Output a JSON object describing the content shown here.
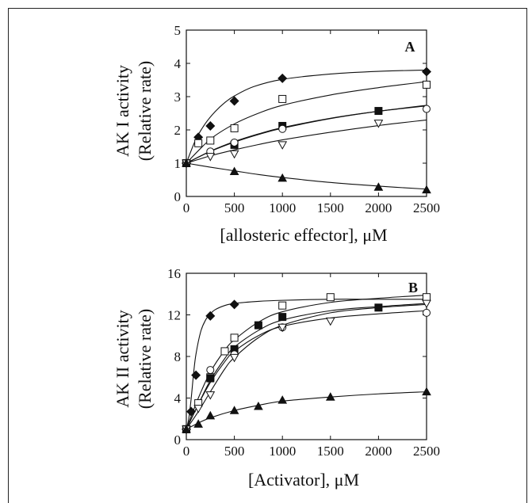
{
  "chart_data": [
    {
      "type": "scatter",
      "panel_label": "A",
      "xlabel": "[allosteric effector], μM",
      "ylabel_line1": "AK I activity",
      "ylabel_line2": "(Relative rate)",
      "xlim": [
        0,
        2500
      ],
      "ylim": [
        0,
        5
      ],
      "xticks": [
        0,
        500,
        1000,
        1500,
        2000,
        2500
      ],
      "yticks": [
        0,
        1,
        2,
        3,
        4,
        5
      ],
      "grid": false,
      "series": [
        {
          "marker": "filled-diamond",
          "x": [
            0,
            125,
            250,
            500,
            1000,
            2500
          ],
          "y": [
            1.0,
            1.78,
            2.12,
            2.87,
            3.55,
            3.75
          ],
          "fit_x": [
            0,
            100,
            200,
            300,
            400,
            500,
            700,
            1000,
            1500,
            2000,
            2500
          ],
          "fit_y": [
            1.0,
            1.72,
            2.2,
            2.55,
            2.82,
            3.02,
            3.3,
            3.52,
            3.68,
            3.76,
            3.8
          ]
        },
        {
          "marker": "open-square",
          "x": [
            0,
            125,
            250,
            500,
            1000,
            2500
          ],
          "y": [
            1.0,
            1.6,
            1.68,
            2.05,
            2.93,
            3.36
          ],
          "fit_x": [
            0,
            250,
            500,
            750,
            1000,
            1500,
            2000,
            2500
          ],
          "fit_y": [
            1.0,
            1.72,
            2.18,
            2.5,
            2.74,
            3.05,
            3.27,
            3.45
          ]
        },
        {
          "marker": "filled-square",
          "x": [
            0,
            500,
            1000,
            2000
          ],
          "y": [
            1.0,
            1.55,
            2.12,
            2.57
          ],
          "fit_x": [
            0,
            250,
            500,
            750,
            1000,
            1500,
            2000,
            2500
          ],
          "fit_y": [
            1.0,
            1.36,
            1.65,
            1.88,
            2.07,
            2.35,
            2.56,
            2.72
          ]
        },
        {
          "marker": "open-circle",
          "x": [
            0,
            250,
            500,
            1000,
            2500
          ],
          "y": [
            1.0,
            1.35,
            1.62,
            2.03,
            2.63
          ],
          "fit_x": [
            0,
            250,
            500,
            750,
            1000,
            1500,
            2000,
            2500
          ],
          "fit_y": [
            1.0,
            1.35,
            1.63,
            1.86,
            2.05,
            2.34,
            2.56,
            2.74
          ]
        },
        {
          "marker": "open-triangle-down",
          "x": [
            0,
            250,
            500,
            1000,
            2000
          ],
          "y": [
            1.0,
            1.2,
            1.28,
            1.55,
            2.2
          ],
          "fit_x": [
            0,
            250,
            500,
            750,
            1000,
            1500,
            2000,
            2500
          ],
          "fit_y": [
            1.0,
            1.22,
            1.4,
            1.56,
            1.7,
            1.93,
            2.13,
            2.3
          ]
        },
        {
          "marker": "filled-triangle-up",
          "x": [
            0,
            500,
            1000,
            2000,
            2500
          ],
          "y": [
            1.0,
            0.75,
            0.55,
            0.28,
            0.2
          ],
          "fit_x": [
            0,
            250,
            500,
            750,
            1000,
            1500,
            2000,
            2500
          ],
          "fit_y": [
            1.0,
            0.88,
            0.77,
            0.66,
            0.57,
            0.42,
            0.31,
            0.22
          ]
        }
      ]
    },
    {
      "type": "scatter",
      "panel_label": "B",
      "xlabel": "[Activator], μM",
      "ylabel_line1": "AK II activity",
      "ylabel_line2": "(Relative rate)",
      "xlim": [
        0,
        2500
      ],
      "ylim": [
        0,
        16
      ],
      "xticks": [
        0,
        500,
        1000,
        1500,
        2000,
        2500
      ],
      "yticks": [
        0,
        4,
        8,
        12,
        16
      ],
      "grid": false,
      "series": [
        {
          "marker": "filled-diamond",
          "x": [
            0,
            50,
            100,
            250,
            500
          ],
          "y": [
            1.0,
            2.7,
            6.2,
            11.9,
            13.0
          ],
          "fit_x": [
            0,
            25,
            50,
            75,
            100,
            150,
            200,
            250,
            300,
            400,
            500,
            750,
            1000,
            1500,
            2000,
            2500
          ],
          "fit_y": [
            1.0,
            2.0,
            3.9,
            6.3,
            8.2,
            10.4,
            11.5,
            12.1,
            12.5,
            12.9,
            13.1,
            13.3,
            13.4,
            13.5,
            13.5,
            13.5
          ]
        },
        {
          "marker": "open-square",
          "x": [
            0,
            125,
            250,
            400,
            500,
            1000,
            1500,
            2500
          ],
          "y": [
            1.0,
            3.5,
            6.0,
            8.5,
            9.8,
            12.9,
            13.7,
            13.7
          ],
          "fit_x": [
            0,
            125,
            250,
            400,
            500,
            750,
            1000,
            1500,
            2000,
            2500
          ],
          "fit_y": [
            1.0,
            4.0,
            6.5,
            8.6,
            9.6,
            11.3,
            12.3,
            13.2,
            13.6,
            13.9
          ]
        },
        {
          "marker": "filled-square",
          "x": [
            0,
            250,
            500,
            750,
            1000,
            2000
          ],
          "y": [
            1.0,
            5.9,
            8.7,
            11.0,
            11.8,
            12.7
          ],
          "fit_x": [
            0,
            125,
            250,
            400,
            500,
            750,
            1000,
            1500,
            2000,
            2500
          ],
          "fit_y": [
            1.0,
            3.4,
            5.7,
            7.8,
            8.9,
            10.5,
            11.5,
            12.4,
            12.8,
            13.1
          ]
        },
        {
          "marker": "open-circle",
          "x": [
            0,
            250,
            500,
            1000,
            2500
          ],
          "y": [
            1.0,
            6.7,
            8.2,
            10.8,
            12.2
          ],
          "fit_x": [
            0,
            125,
            250,
            400,
            500,
            750,
            1000,
            1500,
            2000,
            2500
          ],
          "fit_y": [
            1.0,
            3.4,
            5.5,
            7.5,
            8.5,
            10.0,
            10.9,
            11.7,
            12.1,
            12.4
          ]
        },
        {
          "marker": "open-triangle-down",
          "x": [
            0,
            125,
            250,
            500,
            1000,
            1500,
            2500
          ],
          "y": [
            1.0,
            3.0,
            4.3,
            7.9,
            10.8,
            11.4,
            13.1
          ],
          "fit_x": [
            0,
            125,
            250,
            400,
            500,
            750,
            1000,
            1500,
            2000,
            2500
          ],
          "fit_y": [
            1.0,
            2.7,
            4.6,
            6.8,
            7.9,
            9.8,
            11.0,
            12.2,
            12.7,
            13.0
          ]
        },
        {
          "marker": "filled-triangle-up",
          "x": [
            0,
            125,
            250,
            500,
            750,
            1000,
            1500,
            2500
          ],
          "y": [
            1.0,
            1.5,
            2.3,
            2.8,
            3.2,
            3.8,
            4.1,
            4.6
          ],
          "fit_x": [
            0,
            125,
            250,
            500,
            750,
            1000,
            1500,
            2000,
            2500
          ],
          "fit_y": [
            1.0,
            1.6,
            2.1,
            2.8,
            3.3,
            3.7,
            4.1,
            4.4,
            4.6
          ]
        }
      ]
    }
  ]
}
